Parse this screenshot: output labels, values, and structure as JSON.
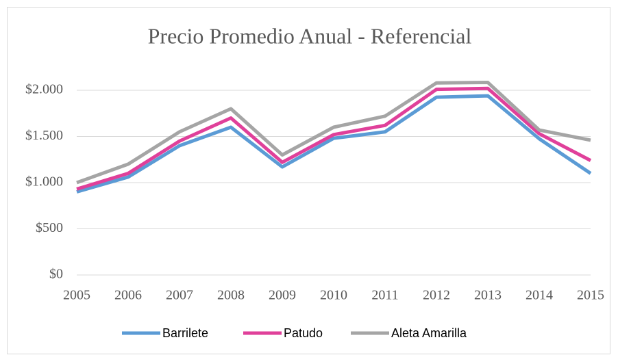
{
  "chart_data": {
    "type": "line",
    "title": "Precio Promedio Anual - Referencial",
    "categories": [
      "2005",
      "2006",
      "2007",
      "2008",
      "2009",
      "2010",
      "2011",
      "2012",
      "2013",
      "2014",
      "2015"
    ],
    "series": [
      {
        "name": "Barrilete",
        "color": "#5b9bd5",
        "values": [
          900,
          1060,
          1400,
          1600,
          1170,
          1480,
          1550,
          1925,
          1940,
          1475,
          1100
        ]
      },
      {
        "name": "Patudo",
        "color": "#e0409a",
        "values": [
          930,
          1100,
          1450,
          1700,
          1220,
          1520,
          1620,
          2010,
          2020,
          1530,
          1240
        ]
      },
      {
        "name": "Aleta Amarilla",
        "color": "#a5a5a5",
        "values": [
          1000,
          1200,
          1550,
          1800,
          1300,
          1600,
          1720,
          2080,
          2085,
          1570,
          1460
        ]
      }
    ],
    "ylim": [
      0,
      2000
    ],
    "yticks": [
      {
        "value": 0,
        "label": "$0"
      },
      {
        "value": 500,
        "label": "$500"
      },
      {
        "value": 1000,
        "label": "$1.000"
      },
      {
        "value": 1500,
        "label": "$1.500"
      },
      {
        "value": 2000,
        "label": "$2.000"
      }
    ],
    "grid": true,
    "legend": "bottom"
  }
}
